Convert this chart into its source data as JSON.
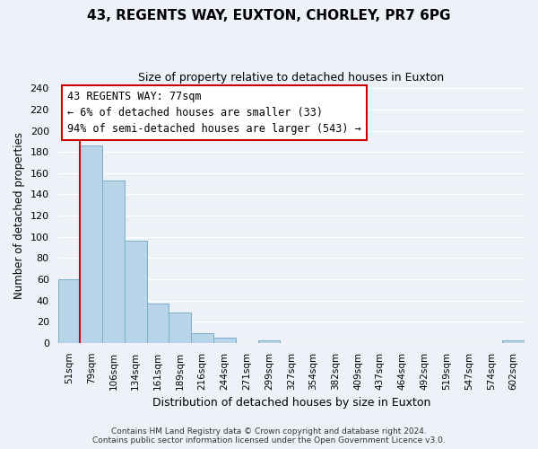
{
  "title": "43, REGENTS WAY, EUXTON, CHORLEY, PR7 6PG",
  "subtitle": "Size of property relative to detached houses in Euxton",
  "xlabel": "Distribution of detached houses by size in Euxton",
  "ylabel": "Number of detached properties",
  "bin_labels": [
    "51sqm",
    "79sqm",
    "106sqm",
    "134sqm",
    "161sqm",
    "189sqm",
    "216sqm",
    "244sqm",
    "271sqm",
    "299sqm",
    "327sqm",
    "354sqm",
    "382sqm",
    "409sqm",
    "437sqm",
    "464sqm",
    "492sqm",
    "519sqm",
    "547sqm",
    "574sqm",
    "602sqm"
  ],
  "bar_heights": [
    60,
    186,
    153,
    96,
    37,
    29,
    9,
    5,
    0,
    2,
    0,
    0,
    0,
    0,
    0,
    0,
    0,
    0,
    0,
    0,
    2
  ],
  "bar_color": "#b8d4e8",
  "bar_edge_color": "#7aafc8",
  "marker_color": "#cc0000",
  "ylim": [
    0,
    240
  ],
  "yticks": [
    0,
    20,
    40,
    60,
    80,
    100,
    120,
    140,
    160,
    180,
    200,
    220,
    240
  ],
  "annotation_text_line1": "43 REGENTS WAY: 77sqm",
  "annotation_text_line2": "← 6% of detached houses are smaller (33)",
  "annotation_text_line3": "94% of semi-detached houses are larger (543) →",
  "footer_line1": "Contains HM Land Registry data © Crown copyright and database right 2024.",
  "footer_line2": "Contains public sector information licensed under the Open Government Licence v3.0.",
  "background_color": "#eef2f8",
  "grid_color": "#ffffff"
}
